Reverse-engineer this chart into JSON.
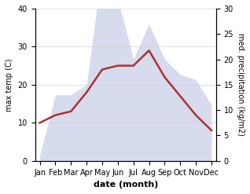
{
  "months": [
    "Jan",
    "Feb",
    "Mar",
    "Apr",
    "May",
    "Jun",
    "Jul",
    "Aug",
    "Sep",
    "Oct",
    "Nov",
    "Dec"
  ],
  "temperature": [
    10,
    12,
    13,
    18,
    24,
    25,
    25,
    29,
    22,
    17,
    12,
    8
  ],
  "precipitation": [
    1,
    13,
    13,
    15,
    38,
    32,
    20,
    27,
    20,
    17,
    16,
    11
  ],
  "temp_color": "#b03030",
  "precip_fill_color": "#c5cce8",
  "precip_alpha": 0.7,
  "left_ylim": [
    0,
    40
  ],
  "right_ylim": [
    0,
    30
  ],
  "left_ylabel": "max temp (C)",
  "right_ylabel": "med. precipitation (kg/m2)",
  "xlabel": "date (month)",
  "grid_color": "#d0d0d0",
  "temp_linewidth": 1.8
}
